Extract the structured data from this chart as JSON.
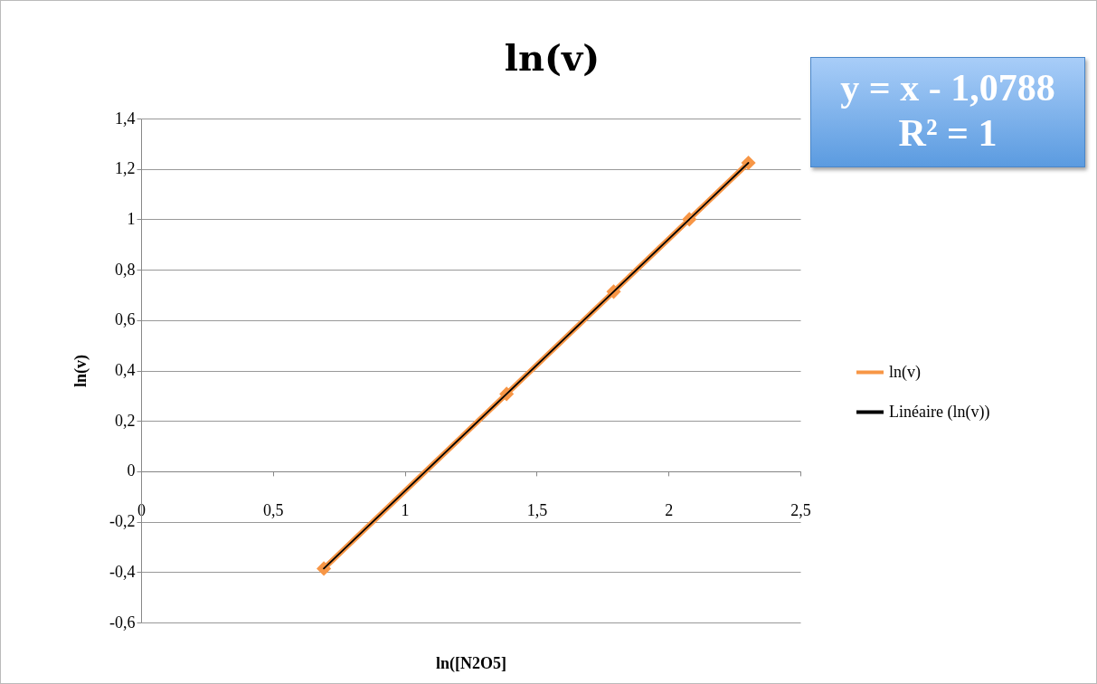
{
  "chart_data": {
    "type": "line",
    "title": "ln(v)",
    "xlabel": "ln([N2O5]",
    "ylabel": "ln(v)",
    "xlim": [
      0,
      2.5
    ],
    "ylim": [
      -0.6,
      1.4
    ],
    "xticks": [
      0,
      {
        "value": 0.5,
        "label": "0,5"
      },
      1,
      {
        "value": 1.5,
        "label": "1,5"
      },
      2,
      {
        "value": 2.5,
        "label": "2,5"
      }
    ],
    "yticks": [
      {
        "value": -0.6,
        "label": "-0,6"
      },
      {
        "value": -0.4,
        "label": "-0,4"
      },
      {
        "value": -0.2,
        "label": "-0,2"
      },
      0,
      {
        "value": 0.2,
        "label": "0,2"
      },
      {
        "value": 0.4,
        "label": "0,4"
      },
      {
        "value": 0.6,
        "label": "0,6"
      },
      {
        "value": 0.8,
        "label": "0,8"
      },
      1,
      {
        "value": 1.2,
        "label": "1,2"
      },
      {
        "value": 1.4,
        "label": "1,4"
      }
    ],
    "grid": "y",
    "legend": "right",
    "annotations": [
      "y = x - 1,0788",
      "R² = 1"
    ],
    "series": [
      {
        "name": "ln(v)",
        "color": "#f79646",
        "marker": "diamond",
        "x": [
          0.693,
          1.386,
          1.792,
          2.079,
          2.303
        ],
        "values": [
          -0.386,
          0.307,
          0.713,
          1.0,
          1.224
        ]
      },
      {
        "name": "Linéaire (ln(v))",
        "color": "#000000",
        "marker": "none",
        "x": [
          0.693,
          2.303
        ],
        "values": [
          -0.386,
          1.224
        ]
      }
    ]
  }
}
